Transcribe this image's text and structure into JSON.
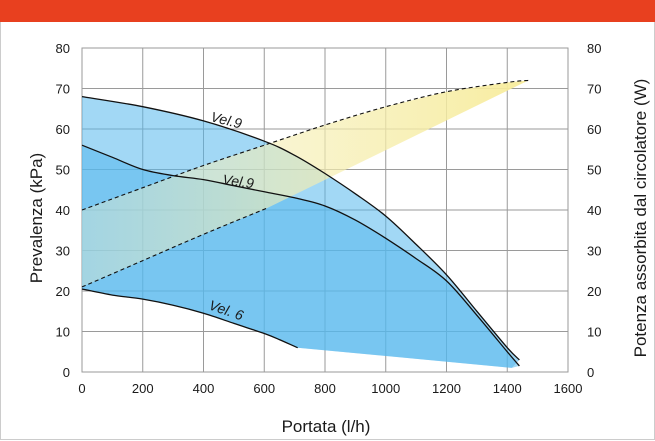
{
  "colors": {
    "top_bar": "#e8401f",
    "grid": "#9a9a9a",
    "pressure_fill": "#56b8ec",
    "power_fill": "#f7eea0",
    "curve": "#111111"
  },
  "chart_data": {
    "type": "line",
    "xlabel": "Portata (l/h)",
    "ylabel": "Prevalenza (kPa)",
    "y2label": "Potenza assorbita dal circolatore (W)",
    "xlim": [
      0,
      1600
    ],
    "ylim": [
      0,
      80
    ],
    "y2lim": [
      0,
      80
    ],
    "x_ticks": [
      "0",
      "200",
      "400",
      "600",
      "800",
      "1000",
      "1200",
      "1400",
      "1600"
    ],
    "y_ticks": [
      "0",
      "10",
      "20",
      "30",
      "40",
      "50",
      "60",
      "70",
      "80"
    ],
    "y2_ticks": [
      "0",
      "10",
      "20",
      "30",
      "40",
      "50",
      "60",
      "70",
      "80"
    ],
    "grid": true,
    "series": [
      {
        "name": "Vel.9",
        "kind": "pressure",
        "x": [
          0,
          200,
          400,
          600,
          700,
          800,
          900,
          1000,
          1100,
          1200,
          1300,
          1400,
          1440
        ],
        "y": [
          68,
          65.5,
          62,
          57,
          53.5,
          49,
          44,
          38.5,
          31.5,
          24,
          15,
          6,
          3
        ]
      },
      {
        "name": "Vel.9",
        "kind": "pressure",
        "x": [
          0,
          100,
          200,
          300,
          400,
          500,
          600,
          700,
          800,
          900,
          1000,
          1100,
          1200,
          1300,
          1400,
          1440
        ],
        "y": [
          56,
          53,
          50,
          48.5,
          47.5,
          46,
          44.5,
          43,
          41,
          37.5,
          33,
          28,
          22.5,
          14,
          5,
          1.5
        ]
      },
      {
        "name": "Vel. 6",
        "kind": "pressure",
        "x": [
          0,
          100,
          200,
          300,
          400,
          500,
          600,
          650,
          710
        ],
        "y": [
          20.5,
          19,
          18,
          16.5,
          14.5,
          12,
          9.5,
          8,
          6
        ]
      },
      {
        "name": "",
        "kind": "power",
        "x": [
          0,
          200,
          400,
          600,
          800,
          1000,
          1200,
          1400,
          1470
        ],
        "y": [
          40,
          45.5,
          51,
          56,
          61,
          65.5,
          69.2,
          71.5,
          72
        ]
      },
      {
        "name": "",
        "kind": "power",
        "x": [
          0,
          200,
          400,
          610
        ],
        "y": [
          21,
          27.5,
          34,
          40.5
        ]
      }
    ],
    "annotations": [
      "Vel.9",
      "Vel.9",
      "Vel. 6"
    ]
  }
}
